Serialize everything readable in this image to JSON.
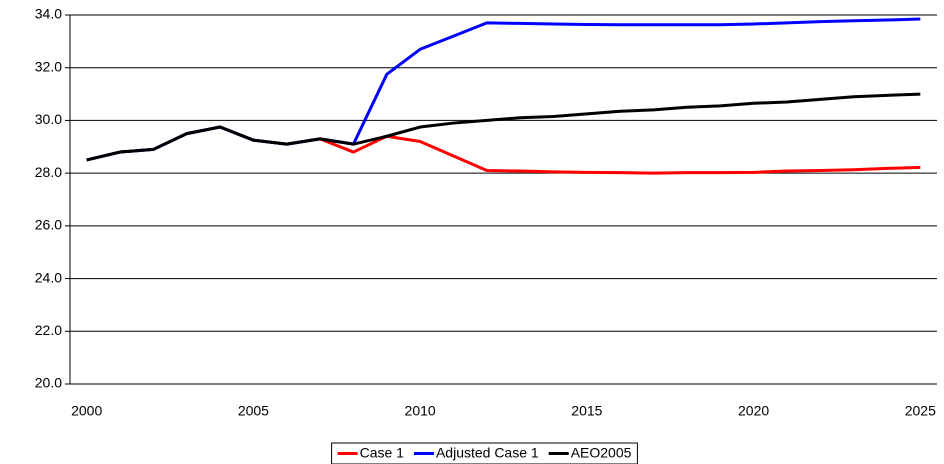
{
  "chart_data": {
    "type": "line",
    "x": [
      2000,
      2001,
      2002,
      2003,
      2004,
      2005,
      2006,
      2007,
      2008,
      2009,
      2010,
      2011,
      2012,
      2013,
      2014,
      2015,
      2016,
      2017,
      2018,
      2019,
      2020,
      2021,
      2022,
      2023,
      2024,
      2025
    ],
    "xlim": [
      1999.5,
      2025.5
    ],
    "xticks": [
      2000,
      2005,
      2010,
      2015,
      2020,
      2025
    ],
    "ylim": [
      20,
      34
    ],
    "yticks": [
      {
        "value": 20,
        "label": "20.0"
      },
      {
        "value": 22,
        "label": "22.0"
      },
      {
        "value": 24,
        "label": "24.0"
      },
      {
        "value": 26,
        "label": "26.0"
      },
      {
        "value": 28,
        "label": "28.0"
      },
      {
        "value": 30,
        "label": "30.0"
      },
      {
        "value": 32,
        "label": "32.0"
      },
      {
        "value": 34,
        "label": "34.0"
      }
    ],
    "grid": true,
    "legend": "bottom",
    "series": [
      {
        "name": "Case 1",
        "color": "#ff0000",
        "values": [
          28.5,
          28.8,
          28.9,
          29.5,
          29.75,
          29.25,
          29.1,
          29.3,
          28.8,
          29.4,
          29.2,
          28.65,
          28.1,
          28.08,
          28.05,
          28.03,
          28.02,
          28.0,
          28.02,
          28.02,
          28.03,
          28.08,
          28.1,
          28.13,
          28.18,
          28.22
        ]
      },
      {
        "name": "Adjusted Case 1",
        "color": "#0000ff",
        "values": [
          28.5,
          28.8,
          28.9,
          29.5,
          29.75,
          29.25,
          29.1,
          29.3,
          29.1,
          31.75,
          32.7,
          33.2,
          33.7,
          33.68,
          33.66,
          33.64,
          33.63,
          33.63,
          33.63,
          33.63,
          33.66,
          33.7,
          33.75,
          33.78,
          33.81,
          33.85
        ]
      },
      {
        "name": "AEO2005",
        "color": "#000000",
        "values": [
          28.5,
          28.8,
          28.9,
          29.5,
          29.75,
          29.25,
          29.1,
          29.3,
          29.1,
          29.4,
          29.75,
          29.9,
          30.0,
          30.1,
          30.15,
          30.25,
          30.35,
          30.4,
          30.5,
          30.55,
          30.65,
          30.7,
          30.8,
          30.9,
          30.95,
          31.0
        ]
      }
    ]
  }
}
